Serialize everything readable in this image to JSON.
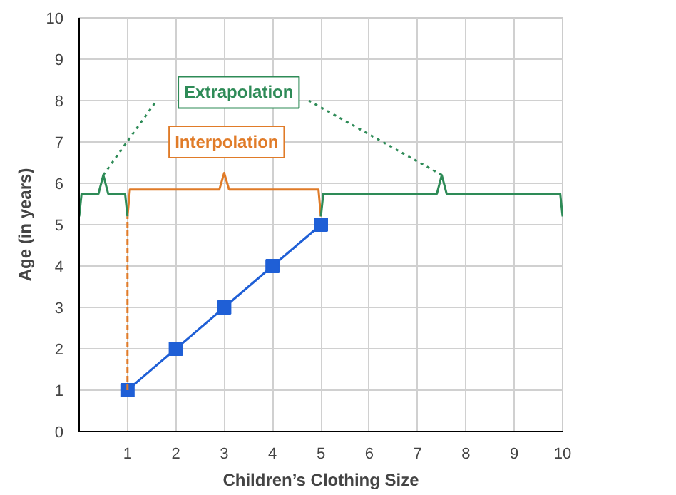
{
  "chart_data": {
    "type": "line",
    "xlabel": "Children’s Clothing Size",
    "ylabel": "Age (in years)",
    "x": [
      1,
      2,
      3,
      4,
      5
    ],
    "series": [
      {
        "color": "#1f5fd6",
        "values": [
          1,
          2,
          3,
          4,
          5
        ],
        "marker": "square"
      },
      {
        "color": "#e07b28",
        "x": [
          1,
          1.05,
          2.9,
          3,
          3.1,
          4.95,
          5
        ],
        "values": [
          5.2,
          5.85,
          5.85,
          6.25,
          5.85,
          5.85,
          5.2
        ]
      },
      {
        "color": "#2e8b57",
        "x": [
          0,
          0.05,
          0.4,
          0.5,
          0.6,
          0.95,
          1
        ],
        "values": [
          5.2,
          5.75,
          5.75,
          6.2,
          5.75,
          5.75,
          5.2
        ]
      },
      {
        "color": "#2e8b57",
        "x": [
          5,
          5.05,
          7.4,
          7.5,
          7.6,
          9.95,
          10
        ],
        "values": [
          5.2,
          5.75,
          5.75,
          6.2,
          5.75,
          5.75,
          5.2
        ]
      },
      {
        "color": "#e07b28",
        "x": [
          1,
          1
        ],
        "values": [
          1,
          5.2
        ],
        "line_style": "dashed"
      },
      {
        "color": "#2e8b57",
        "x": [
          0.5,
          1.6
        ],
        "values": [
          6.2,
          8.0
        ],
        "line_style": "dotted"
      },
      {
        "color": "#2e8b57",
        "x": [
          7.5,
          4.75
        ],
        "values": [
          6.2,
          8.0
        ],
        "line_style": "dotted"
      }
    ],
    "marker": "none",
    "line_style": "solid",
    "grid": true,
    "xlim": [
      0,
      10
    ],
    "ylim": [
      0,
      10
    ],
    "xticks": [
      1,
      2,
      3,
      4,
      5,
      6,
      7,
      8,
      9,
      10
    ],
    "yticks": [
      0,
      1,
      2,
      3,
      4,
      5,
      6,
      7,
      8,
      9,
      10
    ],
    "annotations": [
      "Interpolation",
      "Extrapolation"
    ]
  }
}
